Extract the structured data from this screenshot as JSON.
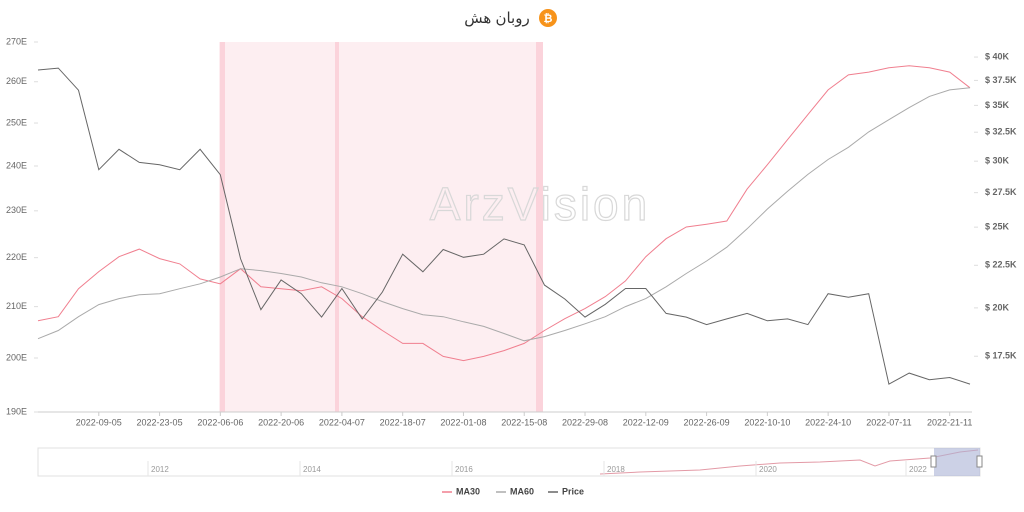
{
  "chart_data": {
    "type": "line",
    "title": "روبان هش",
    "watermark": "ArzVision",
    "categories": [
      null,
      null,
      null,
      "2022-09-05",
      null,
      null,
      "2022-23-05",
      null,
      null,
      "2022-06-06",
      null,
      null,
      "2022-20-06",
      null,
      null,
      "2022-04-07",
      null,
      null,
      "2022-18-07",
      null,
      null,
      "2022-01-08",
      null,
      null,
      "2022-15-08",
      null,
      null,
      "2022-29-08",
      null,
      null,
      "2022-12-09",
      null,
      null,
      "2022-26-09",
      null,
      null,
      "2022-10-10",
      null,
      null,
      "2022-24-10",
      null,
      null,
      "2022-07-11",
      null,
      null,
      "2022-21-11",
      null
    ],
    "series": [
      {
        "name": "MA30",
        "color": "#f07f8f",
        "axis": "y",
        "values": [
          207.2,
          208.0,
          213.6,
          217.1,
          220.2,
          221.8,
          219.8,
          218.7,
          215.6,
          214.6,
          217.7,
          214.0,
          213.6,
          213.2,
          214.0,
          211.6,
          208.0,
          205.3,
          202.8,
          202.8,
          200.3,
          199.5,
          200.3,
          201.4,
          202.8,
          205.3,
          207.6,
          209.6,
          212.0,
          215.2,
          220.2,
          224.0,
          226.5,
          227.1,
          227.8,
          234.8,
          240.3,
          246.1,
          252.0,
          258.0,
          261.7,
          262.4,
          263.5,
          264.0,
          263.5,
          262.4,
          258.5
        ]
      },
      {
        "name": "MA60",
        "color": "#aaaaaa",
        "axis": "y",
        "values": [
          203.7,
          205.3,
          208.0,
          210.4,
          211.6,
          212.4,
          212.6,
          213.6,
          214.6,
          216.0,
          217.7,
          217.3,
          216.7,
          216.0,
          214.8,
          214.0,
          212.6,
          211.0,
          209.6,
          208.4,
          208.0,
          207.0,
          206.1,
          204.7,
          203.3,
          204.1,
          205.3,
          206.6,
          208.0,
          210.0,
          211.6,
          214.0,
          216.7,
          219.3,
          222.2,
          226.1,
          230.4,
          234.3,
          238.1,
          241.5,
          244.3,
          247.9,
          250.8,
          253.7,
          256.4,
          258.0,
          258.5
        ]
      },
      {
        "name": "Price",
        "color": "#666666",
        "axis": "y2",
        "values": [
          38600,
          38800,
          36500,
          29300,
          31000,
          29900,
          29700,
          29300,
          31000,
          28900,
          22900,
          19900,
          21600,
          20800,
          19500,
          21100,
          19400,
          20900,
          23200,
          22100,
          23500,
          23000,
          23200,
          24200,
          23800,
          21300,
          20500,
          19500,
          20200,
          21100,
          21100,
          19700,
          19500,
          19100,
          19400,
          19700,
          19300,
          19400,
          19100,
          20800,
          20600,
          20800,
          16200,
          16700,
          16400,
          16500,
          16200
        ]
      }
    ],
    "ylim": [
      190,
      270
    ],
    "yticks": [
      {
        "value": 190,
        "label": "190E"
      },
      {
        "value": 200,
        "label": "200E"
      },
      {
        "value": 210,
        "label": "210E"
      },
      {
        "value": 220,
        "label": "220E"
      },
      {
        "value": 230,
        "label": "230E"
      },
      {
        "value": 240,
        "label": "240E"
      },
      {
        "value": 250,
        "label": "250E"
      },
      {
        "value": 260,
        "label": "260E"
      },
      {
        "value": 270,
        "label": "270E"
      }
    ],
    "ylog": true,
    "y2lim": [
      15000,
      41700
    ],
    "y2ticks": [
      {
        "value": 17500,
        "label": "$ 17.5K"
      },
      {
        "value": 20000,
        "label": "$ 20K"
      },
      {
        "value": 22500,
        "label": "$ 22.5K"
      },
      {
        "value": 25000,
        "label": "$ 25K"
      },
      {
        "value": 27500,
        "label": "$ 27.5K"
      },
      {
        "value": 30000,
        "label": "$ 30K"
      },
      {
        "value": 32500,
        "label": "$ 32.5K"
      },
      {
        "value": 35000,
        "label": "$ 35K"
      },
      {
        "value": 37500,
        "label": "$ 37.5K"
      },
      {
        "value": 40000,
        "label": "$ 40K"
      }
    ],
    "y2log": true,
    "navigator_labels": [
      "2012",
      "2014",
      "2016",
      "2018",
      "2020",
      "2022"
    ]
  }
}
